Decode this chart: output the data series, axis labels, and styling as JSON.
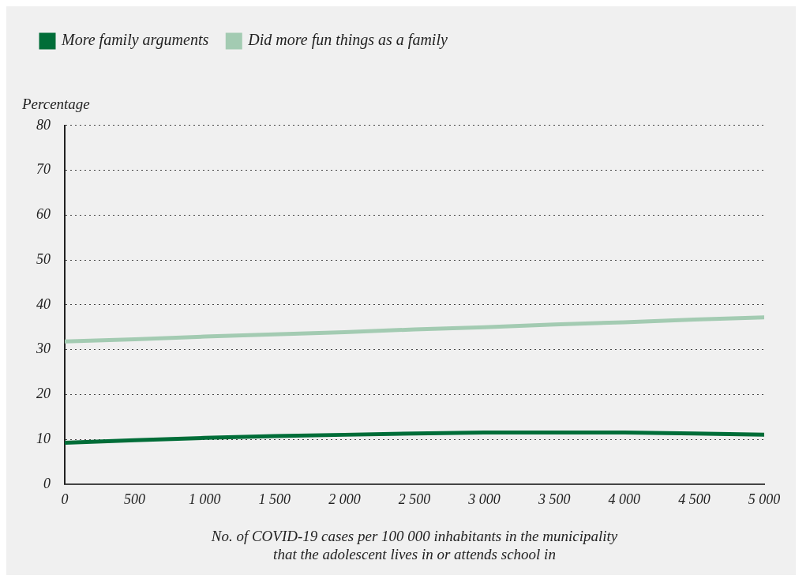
{
  "chart_data": {
    "type": "line",
    "xlabel": "No. of COVID-19 cases per 100 000 inhabitants in the municipality\nthat the adolescent lives in or attends school in",
    "ylabel": "Percentage",
    "x": [
      0,
      500,
      1000,
      1500,
      2000,
      2500,
      3000,
      3500,
      4000,
      4500,
      5000
    ],
    "series": [
      {
        "name": "More family arguments",
        "color": "#006d38",
        "values": [
          9.2,
          9.8,
          10.3,
          10.7,
          11.0,
          11.3,
          11.5,
          11.5,
          11.5,
          11.3,
          11.0
        ]
      },
      {
        "name": "Did more fun things as a family",
        "color": "#a3cbb2",
        "values": [
          31.8,
          32.3,
          32.9,
          33.4,
          33.9,
          34.5,
          35.0,
          35.6,
          36.1,
          36.7,
          37.2
        ]
      }
    ],
    "xlim": [
      0,
      5000
    ],
    "xticks": [
      0,
      500,
      {
        "value": 1000,
        "label": "1 000"
      },
      {
        "value": 1500,
        "label": "1 500"
      },
      {
        "value": 2000,
        "label": "2 000"
      },
      {
        "value": 2500,
        "label": "2 500"
      },
      {
        "value": 3000,
        "label": "3 000"
      },
      {
        "value": 3500,
        "label": "3 500"
      },
      {
        "value": 4000,
        "label": "4 000"
      },
      {
        "value": 4500,
        "label": "4 500"
      },
      {
        "value": 5000,
        "label": "5 000"
      }
    ],
    "ylim": [
      0,
      80
    ],
    "yticks": [
      0,
      10,
      20,
      30,
      40,
      50,
      60,
      70,
      80
    ],
    "grid": "y",
    "legend": "top left",
    "marker": "none",
    "line_style": "solid"
  }
}
